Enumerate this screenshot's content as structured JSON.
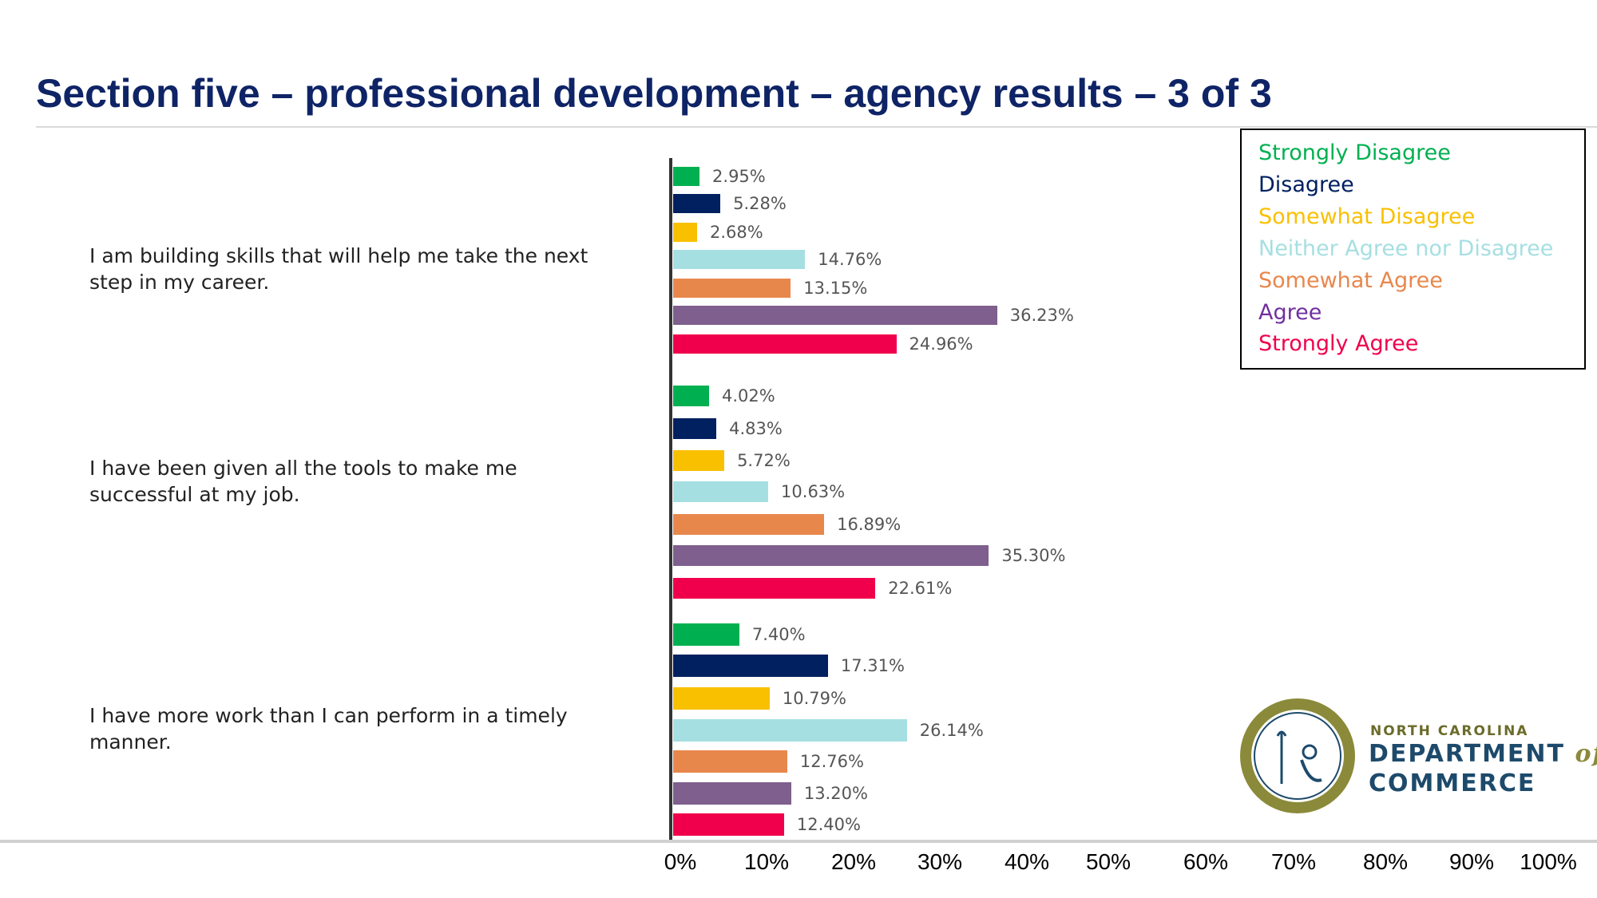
{
  "title": "Section five – professional development –  agency results – 3 of 3",
  "legend": [
    {
      "label": "Strongly Disagree",
      "color": "#00b050"
    },
    {
      "label": "Disagree",
      "color": "#002060"
    },
    {
      "label": "Somewhat Disagree",
      "color": "#f9c000"
    },
    {
      "label": "Neither Agree nor Disagree",
      "color": "#a6dfe2"
    },
    {
      "label": "Somewhat Agree",
      "color": "#e8874c"
    },
    {
      "label": "Agree",
      "color": "#7e5f8d"
    },
    {
      "label": "Strongly Agree",
      "color": "#f0004c"
    }
  ],
  "legend_text_colors": [
    "#00b050",
    "#002060",
    "#f9c000",
    "#a6dfe2",
    "#e8874c",
    "#7030a0",
    "#f0004c"
  ],
  "logo": {
    "line1": "NORTH CAROLINA",
    "line2": "DEPARTMENT",
    "line2_of": "of",
    "line3": "COMMERCE"
  },
  "chart_data": {
    "type": "bar",
    "orientation": "horizontal",
    "categories": [
      "I am building skills that will help me take the next step in my career.",
      "I have been given all the tools to make me successful at my job.",
      "I have more work than I can perform in a timely manner."
    ],
    "series": [
      {
        "name": "Strongly Disagree",
        "values": [
          2.95,
          4.02,
          7.4
        ],
        "labels": [
          "2.95%",
          "4.02%",
          "7.40%"
        ]
      },
      {
        "name": "Disagree",
        "values": [
          5.28,
          4.83,
          17.31
        ],
        "labels": [
          "5.28%",
          "4.83%",
          "17.31%"
        ]
      },
      {
        "name": "Somewhat Disagree",
        "values": [
          2.68,
          5.72,
          10.79
        ],
        "labels": [
          "2.68%",
          "5.72%",
          "10.79%"
        ]
      },
      {
        "name": "Neither Agree nor Disagree",
        "values": [
          14.76,
          10.63,
          26.14
        ],
        "labels": [
          "14.76%",
          "10.63%",
          "26.14%"
        ]
      },
      {
        "name": "Somewhat Agree",
        "values": [
          13.15,
          16.89,
          12.76
        ],
        "labels": [
          "13.15%",
          "16.89%",
          "12.76%"
        ]
      },
      {
        "name": "Agree",
        "values": [
          36.23,
          35.3,
          13.2
        ],
        "labels": [
          "36.23%",
          "35.30%",
          "13.20%"
        ]
      },
      {
        "name": "Strongly Agree",
        "values": [
          24.96,
          22.61,
          12.4
        ],
        "labels": [
          "24.96%",
          "22.61%",
          "12.40%"
        ]
      }
    ],
    "xlim": [
      0,
      100
    ],
    "x_tick_labels": [
      "0%",
      "10%",
      "20%",
      "30%",
      "40%",
      "50%",
      "60%",
      "70%",
      "80%",
      "90%",
      "100%"
    ],
    "grid": false,
    "legend_position": "top-right"
  }
}
